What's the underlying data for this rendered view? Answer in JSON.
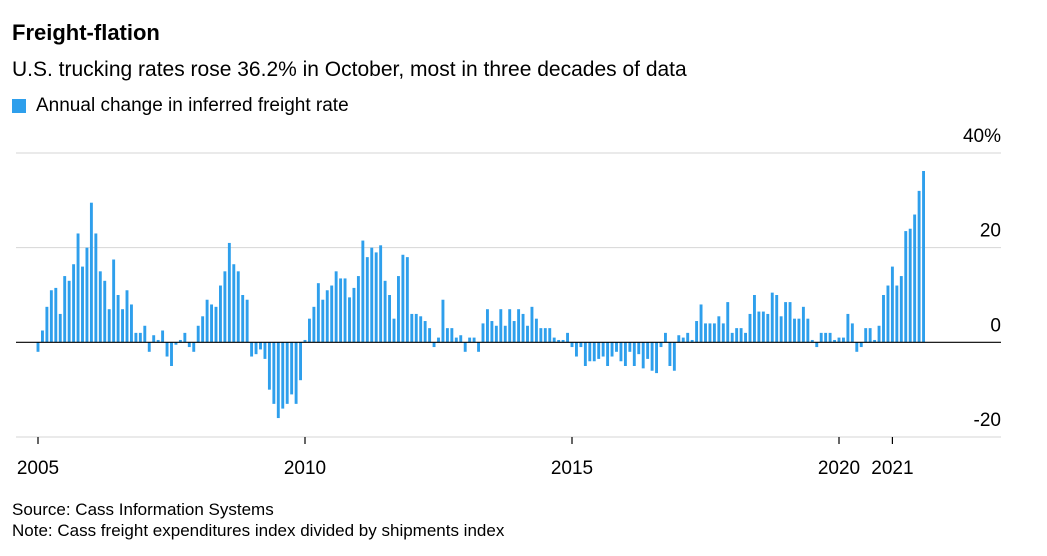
{
  "header": {
    "title": "Freight-flation",
    "subtitle": "U.S. trucking rates rose 36.2% in October, most in three decades of data"
  },
  "footer": {
    "source": "Source: Cass Information Systems",
    "note": "Note: Cass freight expenditures index divided by shipments index"
  },
  "chart_data": {
    "type": "bar",
    "title": "Freight-flation",
    "subtitle": "U.S. trucking rates rose 36.2% in October, most in three decades of data",
    "legend": {
      "position": "top-left",
      "entries": [
        "Annual change in inferred freight rate"
      ]
    },
    "series": [
      {
        "name": "Annual change in inferred freight rate",
        "color": "#2e9fec",
        "start": "2005-01",
        "frequency": "monthly",
        "values": [
          -2,
          2.5,
          7.5,
          11,
          11.5,
          6,
          14,
          13,
          16.5,
          23,
          16,
          20,
          29.5,
          23,
          15,
          13,
          7,
          17.5,
          10,
          7,
          11,
          8,
          2,
          2,
          3.5,
          -2,
          1.5,
          0.5,
          2.5,
          -3,
          -5,
          -0.5,
          0.5,
          2,
          -1,
          -2,
          3.5,
          5.5,
          9,
          8,
          7.5,
          12,
          15,
          21,
          16.5,
          15,
          10,
          9,
          -3,
          -2.5,
          -1.5,
          -3.5,
          -10,
          -13,
          -16,
          -14,
          -13,
          -11,
          -13,
          -8,
          0.5,
          5,
          7.5,
          12.5,
          9,
          11,
          12,
          15,
          13.5,
          13.5,
          9.5,
          11.5,
          14,
          21.5,
          18,
          20,
          19,
          20.5,
          13,
          10,
          5,
          14,
          18.5,
          18,
          6,
          6,
          5.5,
          4.5,
          3,
          -1,
          1,
          9,
          3,
          3,
          1,
          1.5,
          -2,
          1,
          1,
          -2,
          4,
          7,
          4.5,
          3.5,
          7,
          3.5,
          7,
          4.5,
          7,
          6,
          3.5,
          7.5,
          5,
          3,
          3,
          3,
          1,
          0.5,
          0.5,
          2,
          -1,
          -3,
          -1,
          -5,
          -4,
          -4,
          -3.5,
          -3,
          -5,
          -3,
          -2,
          -4,
          -5,
          -2,
          -5,
          -2.5,
          -5.5,
          -3.5,
          -6,
          -6.5,
          -1,
          2,
          -5,
          -6,
          1.5,
          1,
          2,
          0.5,
          4.5,
          8,
          4,
          4,
          4,
          5.5,
          4,
          8.5,
          2,
          3,
          3,
          2,
          6,
          10,
          6.5,
          6.5,
          6,
          10.5,
          10,
          5.5,
          8.5,
          8.5,
          5,
          5,
          7.5,
          5,
          0.5,
          -1,
          2,
          2,
          2,
          0.5,
          1,
          1,
          6,
          4,
          -2,
          -1,
          3,
          3,
          0.5,
          3.5,
          10,
          12,
          16,
          12,
          14,
          23.5,
          24,
          27,
          32,
          36.2
        ]
      }
    ],
    "x_axis": {
      "range": [
        "2005-01",
        "2021-10"
      ],
      "ticks": [
        {
          "label": "2005",
          "date": "2005-01"
        },
        {
          "label": "2010",
          "date": "2010-01"
        },
        {
          "label": "2015",
          "date": "2015-01"
        },
        {
          "label": "2020",
          "date": "2020-01"
        },
        {
          "label": "2021",
          "date": "2021-01"
        }
      ]
    },
    "y_axis": {
      "range": [
        -20,
        40
      ],
      "position": "right",
      "grid": true,
      "ticks": [
        {
          "value": 40,
          "label": "40%"
        },
        {
          "value": 20,
          "label": "20"
        },
        {
          "value": 0,
          "label": "0"
        },
        {
          "value": -20,
          "label": "-20"
        }
      ]
    }
  }
}
